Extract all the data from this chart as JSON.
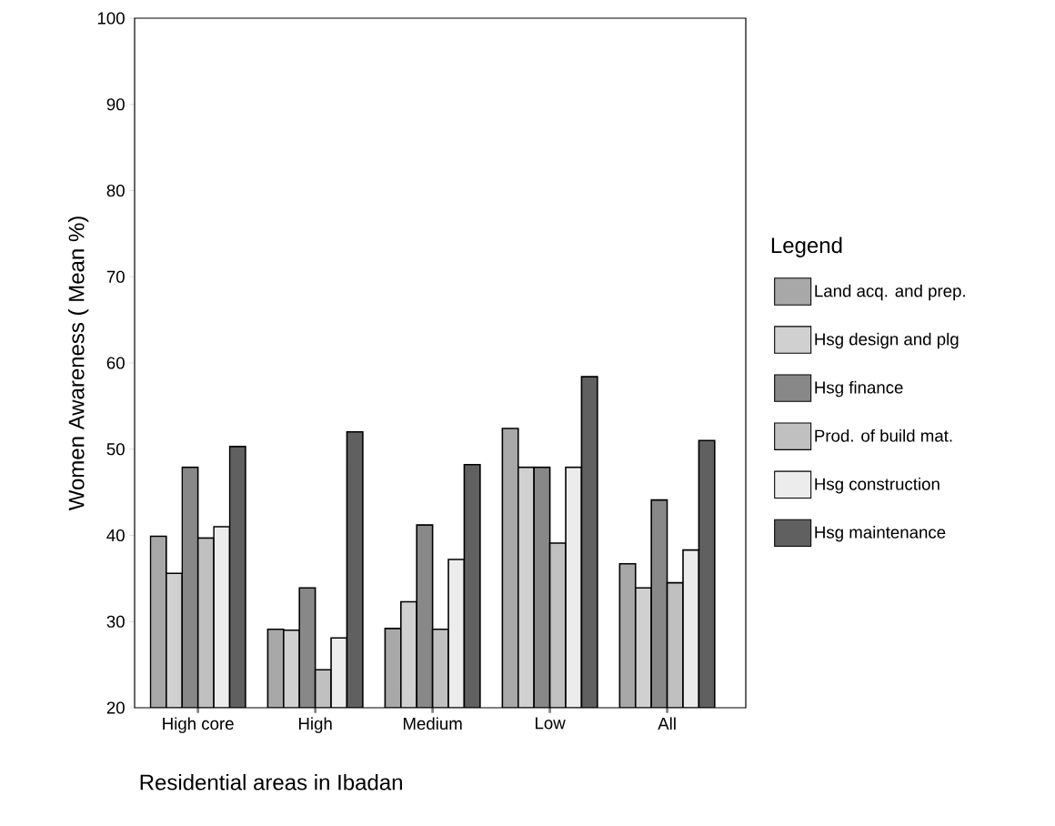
{
  "chart_data": {
    "type": "bar",
    "xlabel": "Residential areas in Ibadan",
    "ylabel": "Women Awareness ( Mean %)",
    "legend_title": "Legend",
    "legend": "right",
    "categories": [
      "High core",
      "High",
      "Medium",
      "Low",
      "All"
    ],
    "ylim": [
      20,
      100
    ],
    "yticks": [
      20,
      30,
      40,
      50,
      60,
      70,
      80,
      90,
      100
    ],
    "series": [
      {
        "name": "Land acq. and prep.",
        "color": "#a8a8a8",
        "values": [
          39.9,
          29.1,
          29.2,
          52.4,
          36.7
        ]
      },
      {
        "name": "Hsg design and plg",
        "color": "#d0d0d0",
        "values": [
          35.6,
          29.0,
          32.3,
          47.9,
          33.9
        ]
      },
      {
        "name": "Hsg finance",
        "color": "#888888",
        "values": [
          47.9,
          33.9,
          41.2,
          47.9,
          44.1
        ]
      },
      {
        "name": "Prod. of build mat.",
        "color": "#c0c0c0",
        "values": [
          39.7,
          24.4,
          29.1,
          39.1,
          34.5
        ]
      },
      {
        "name": "Hsg construction",
        "color": "#ececec",
        "values": [
          41.0,
          28.1,
          37.2,
          47.9,
          38.3
        ]
      },
      {
        "name": "Hsg maintenance",
        "color": "#606060",
        "values": [
          50.3,
          52.0,
          48.2,
          58.4,
          51.0
        ]
      }
    ]
  }
}
